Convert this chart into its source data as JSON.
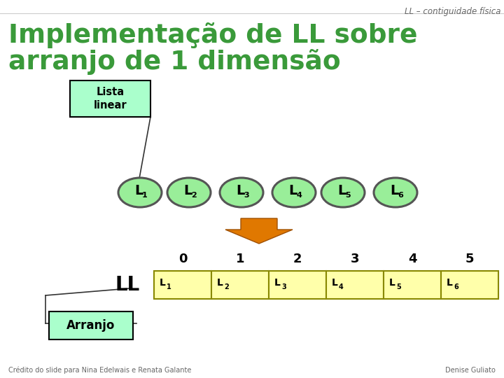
{
  "bg_color": "#ffffff",
  "title_line1": "Implementação de LL sobre",
  "title_line2": "arranjo de 1 dimensão",
  "title_color": "#3a9a3a",
  "header_text": "LL – contiguidade física",
  "header_color": "#666666",
  "lista_label": "Lista\nlinear",
  "lista_box_facecolor": "#aaffcc",
  "lista_box_edgecolor": "#000000",
  "arranjo_label": "Arranjo",
  "arranjo_box_facecolor": "#aaffcc",
  "arranjo_box_edgecolor": "#000000",
  "ll_label": "LL",
  "ll_color": "#000000",
  "ellipse_fill": "#99ee99",
  "ellipse_edge": "#555555",
  "ellipse_labels": [
    "L1",
    "L2",
    "L3",
    "L4",
    "L5",
    "L6"
  ],
  "arrow_fill": "#e07800",
  "arrow_edge": "#a05000",
  "array_fill": "#ffffaa",
  "array_edge": "#888800",
  "array_indices": [
    "0",
    "1",
    "2",
    "3",
    "4",
    "5"
  ],
  "array_labels": [
    "L1",
    "L2",
    "L3",
    "L4",
    "L5",
    "L6"
  ],
  "credit_left": "Crédito do slide para Nina Edelwais e Renata Galante",
  "credit_right": "Denise Guliato",
  "credit_color": "#666666"
}
